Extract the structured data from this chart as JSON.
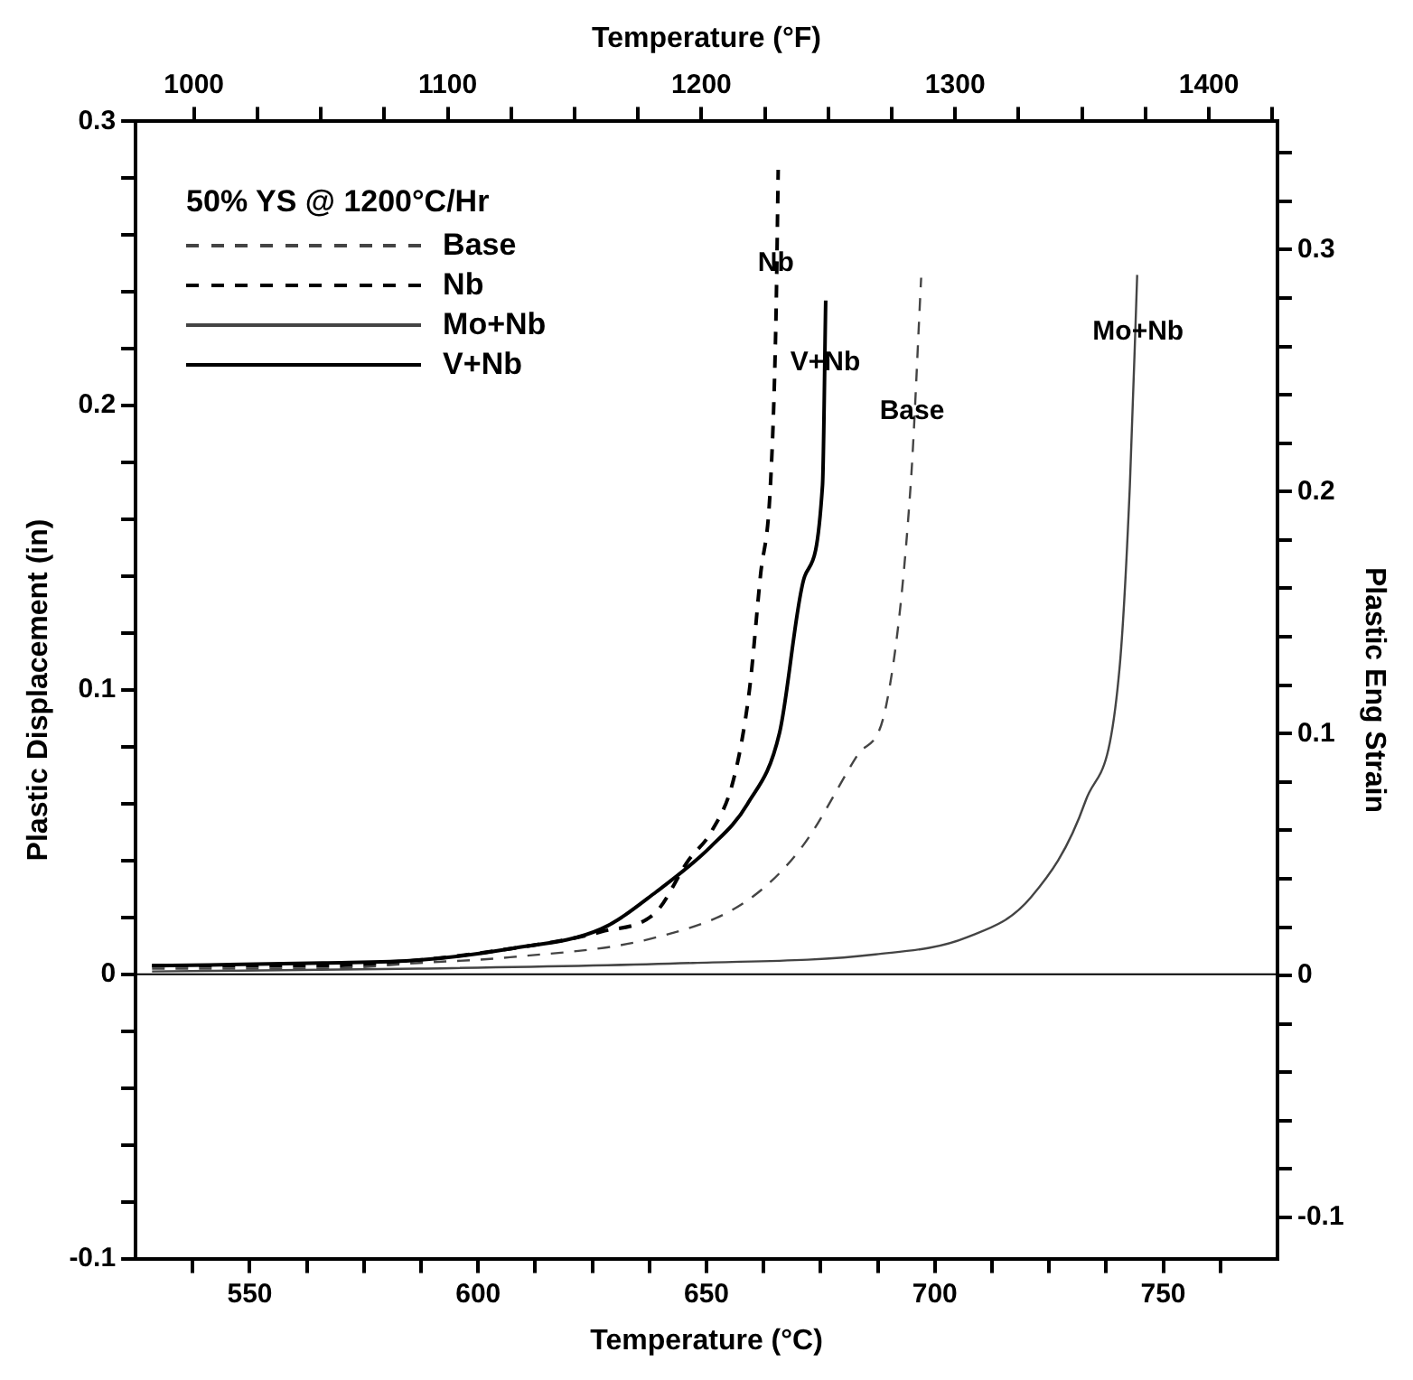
{
  "chart_data": {
    "type": "line",
    "xlabel": "Temperature (°C)",
    "x2label": "Temperature (°F)",
    "ylabel": "Plastic Displacement (in)",
    "y2label": "Plastic Eng Strain",
    "legend_title": "50% YS @ 1200°C/Hr",
    "legend": "top left",
    "xlim": [
      525,
      775
    ],
    "xticks": [
      {
        "value": 537.5,
        "label": null
      },
      550,
      {
        "value": 562.5,
        "label": null
      },
      {
        "value": 575,
        "label": null
      },
      {
        "value": 587.5,
        "label": null
      },
      600,
      {
        "value": 612.5,
        "label": null
      },
      {
        "value": 625,
        "label": null
      },
      {
        "value": 637.5,
        "label": null
      },
      650,
      {
        "value": 662.5,
        "label": null
      },
      {
        "value": 675,
        "label": null
      },
      {
        "value": 687.5,
        "label": null
      },
      700,
      {
        "value": 712.5,
        "label": null
      },
      {
        "value": 725,
        "label": null
      },
      {
        "value": 737.5,
        "label": null
      },
      750,
      {
        "value": 762.5,
        "label": null
      }
    ],
    "x2lim": [
      977,
      1427
    ],
    "x2ticks": [
      1000,
      {
        "value": 1025,
        "label": null
      },
      {
        "value": 1050,
        "label": null
      },
      {
        "value": 1075,
        "label": null
      },
      1100,
      {
        "value": 1125,
        "label": null
      },
      {
        "value": 1150,
        "label": null
      },
      {
        "value": 1175,
        "label": null
      },
      1200,
      {
        "value": 1225,
        "label": null
      },
      {
        "value": 1250,
        "label": null
      },
      {
        "value": 1275,
        "label": null
      },
      1300,
      {
        "value": 1325,
        "label": null
      },
      {
        "value": 1350,
        "label": null
      },
      {
        "value": 1375,
        "label": null
      },
      1400,
      {
        "value": 1425,
        "label": null
      }
    ],
    "ylim": [
      -0.1,
      0.3
    ],
    "yticks": [
      -0.1,
      {
        "value": -0.08,
        "label": null
      },
      {
        "value": -0.06,
        "label": null
      },
      {
        "value": -0.04,
        "label": null
      },
      {
        "value": -0.02,
        "label": null
      },
      0,
      {
        "value": 0.02,
        "label": null
      },
      {
        "value": 0.04,
        "label": null
      },
      {
        "value": 0.06,
        "label": null
      },
      {
        "value": 0.08,
        "label": null
      },
      0.1,
      {
        "value": 0.12,
        "label": null
      },
      {
        "value": 0.14,
        "label": null
      },
      {
        "value": 0.16,
        "label": null
      },
      {
        "value": 0.18,
        "label": null
      },
      0.2,
      {
        "value": 0.22,
        "label": null
      },
      {
        "value": 0.24,
        "label": null
      },
      {
        "value": 0.26,
        "label": null
      },
      {
        "value": 0.28,
        "label": null
      },
      0.3
    ],
    "y2lim": [
      -0.117,
      0.353
    ],
    "y2ticks": [
      {
        "value": -0.1,
        "label": "-0.1"
      },
      {
        "value": -0.08,
        "label": null
      },
      {
        "value": -0.06,
        "label": null
      },
      {
        "value": -0.04,
        "label": null
      },
      {
        "value": -0.02,
        "label": null
      },
      0,
      {
        "value": 0.02,
        "label": null
      },
      {
        "value": 0.04,
        "label": null
      },
      {
        "value": 0.06,
        "label": null
      },
      {
        "value": 0.08,
        "label": null
      },
      0.1,
      {
        "value": 0.12,
        "label": null
      },
      {
        "value": 0.14,
        "label": null
      },
      {
        "value": 0.16,
        "label": null
      },
      {
        "value": 0.18,
        "label": null
      },
      0.2,
      {
        "value": 0.22,
        "label": null
      },
      {
        "value": 0.24,
        "label": null
      },
      {
        "value": 0.26,
        "label": null
      },
      {
        "value": 0.28,
        "label": null
      },
      0.3,
      {
        "value": 0.32,
        "label": null
      },
      {
        "value": 0.34,
        "label": null
      }
    ],
    "ref_lines": [
      {
        "axis": "y",
        "value": 0,
        "color": "#000000"
      }
    ],
    "annotations": [
      {
        "text": "Nb",
        "x": 665.2,
        "y": 0.25
      },
      {
        "text": "V+Nb",
        "x": 676,
        "y": 0.215
      },
      {
        "text": "Base",
        "x": 695,
        "y": 0.198
      },
      {
        "text": "Mo+Nb",
        "x": 744.5,
        "y": 0.226
      }
    ],
    "series": [
      {
        "name": "Base",
        "color": "#444444",
        "line_style": "dashed",
        "x": [
          528.6,
          566,
          587,
          607,
          639,
          659,
          671,
          683,
          689.4,
          694.7,
          697
        ],
        "values": [
          0.002,
          0.002,
          0.004,
          0.006,
          0.013,
          0.026,
          0.045,
          0.077,
          0.095,
          0.172,
          0.245
        ]
      },
      {
        "name": "Nb",
        "color": "#000000",
        "line_style": "dashed",
        "x": [
          528.6,
          566,
          587,
          607,
          627,
          639,
          646,
          651,
          656,
          659.4,
          661.8,
          664,
          665.2,
          665.7
        ],
        "values": [
          0.003,
          0.003,
          0.005,
          0.009,
          0.015,
          0.022,
          0.04,
          0.05,
          0.069,
          0.1,
          0.14,
          0.172,
          0.23,
          0.283
        ]
      },
      {
        "name": "Mo+Nb",
        "color": "#444444",
        "line_style": "solid",
        "x": [
          528.6,
          587,
          647,
          687,
          707,
          721,
          733,
          740.4,
          742.7,
          744.3
        ],
        "values": [
          0.001,
          0.002,
          0.004,
          0.007,
          0.013,
          0.027,
          0.061,
          0.107,
          0.172,
          0.246
        ]
      },
      {
        "name": "V+Nb",
        "color": "#000000",
        "line_style": "solid",
        "x": [
          528.6,
          566,
          587,
          607,
          627,
          639,
          651,
          659,
          666,
          671.5,
          675.4,
          676.1
        ],
        "values": [
          0.003,
          0.004,
          0.005,
          0.009,
          0.016,
          0.029,
          0.045,
          0.06,
          0.085,
          0.14,
          0.172,
          0.237
        ]
      }
    ]
  }
}
